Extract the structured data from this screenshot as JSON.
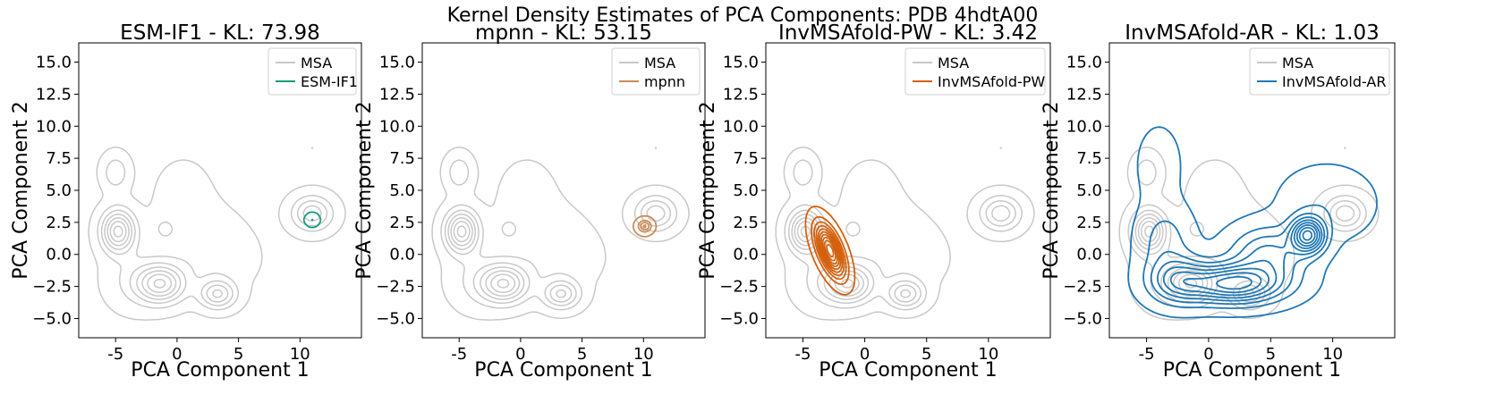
{
  "figure_title": "Kernel Density Estimates of PCA Components: PDB 4hdtA00",
  "colors": {
    "msa": "#c8c8c8",
    "esm_if1": "#10997a",
    "mpnn": "#cd8b57",
    "invmsafold_pw": "#d4600c",
    "invmsafold_ar": "#1f77b4"
  },
  "chart_data": [
    {
      "type": "kde_contour",
      "title": "ESM-IF1 - KL: 73.98",
      "xlabel": "PCA Component 1",
      "ylabel": "PCA Component 2",
      "xlim": [
        -8,
        15
      ],
      "ylim": [
        -6.5,
        16.5
      ],
      "xticks": [
        -5,
        0,
        5,
        10
      ],
      "yticks": [
        -5.0,
        -2.5,
        0.0,
        2.5,
        5.0,
        7.5,
        10.0,
        12.5,
        15.0
      ],
      "legend": [
        "MSA",
        "ESM-IF1"
      ],
      "legend_position": "upper right",
      "color_key": "esm_if1",
      "kde_components": [
        {
          "cx": 11.0,
          "cy": 2.7,
          "sx": 0.25,
          "sy": 0.22,
          "w": 1.0
        }
      ],
      "contour_levels": 2
    },
    {
      "type": "kde_contour",
      "title": "mpnn - KL: 53.15",
      "xlabel": "PCA Component 1",
      "ylabel": "PCA Component 2",
      "xlim": [
        -8,
        15
      ],
      "ylim": [
        -6.5,
        16.5
      ],
      "xticks": [
        -5,
        0,
        5,
        10
      ],
      "yticks": [
        -5.0,
        -2.5,
        0.0,
        2.5,
        5.0,
        7.5,
        10.0,
        12.5,
        15.0
      ],
      "legend": [
        "MSA",
        "mpnn"
      ],
      "legend_position": "upper right",
      "color_key": "mpnn",
      "kde_components": [
        {
          "cx": 10.1,
          "cy": 2.2,
          "sx": 0.35,
          "sy": 0.3,
          "w": 1.0
        }
      ],
      "contour_levels": 4
    },
    {
      "type": "kde_contour",
      "title": "InvMSAfold-PW - KL: 3.42",
      "xlabel": "PCA Component 1",
      "ylabel": "PCA Component 2",
      "xlim": [
        -8,
        15
      ],
      "ylim": [
        -6.5,
        16.5
      ],
      "xticks": [
        -5,
        0,
        5,
        10
      ],
      "yticks": [
        -5.0,
        -2.5,
        0.0,
        2.5,
        5.0,
        7.5,
        10.0,
        12.5,
        15.0
      ],
      "legend": [
        "MSA",
        "InvMSAfold-PW"
      ],
      "legend_position": "upper right",
      "color_key": "invmsafold_pw",
      "kde_components": [
        {
          "cx": -2.8,
          "cy": 0.3,
          "sx": 0.75,
          "sy": 1.3,
          "w": 1.0,
          "rho": -0.6
        }
      ],
      "contour_levels": 10
    },
    {
      "type": "kde_contour",
      "title": "InvMSAfold-AR - KL: 1.03",
      "xlabel": "PCA Component 1",
      "ylabel": "PCA Component 2",
      "xlim": [
        -8,
        15
      ],
      "ylim": [
        -6.5,
        16.5
      ],
      "xticks": [
        -5,
        0,
        5,
        10
      ],
      "yticks": [
        -5.0,
        -2.5,
        0.0,
        2.5,
        5.0,
        7.5,
        10.0,
        12.5,
        15.0
      ],
      "legend": [
        "MSA",
        "InvMSAfold-AR"
      ],
      "legend_position": "upper right",
      "color_key": "invmsafold_ar",
      "kde_components": [
        {
          "cx": 8.0,
          "cy": 1.5,
          "sx": 0.9,
          "sy": 0.9,
          "w": 1.0
        },
        {
          "cx": 2.0,
          "cy": -2.3,
          "sx": 2.6,
          "sy": 1.0,
          "w": 0.95
        },
        {
          "cx": -2.5,
          "cy": -2.0,
          "sx": 1.6,
          "sy": 1.2,
          "w": 0.5
        },
        {
          "cx": 4.8,
          "cy": 0.0,
          "sx": 2.0,
          "sy": 1.4,
          "w": 0.45
        },
        {
          "cx": -3.5,
          "cy": 1.0,
          "sx": 1.4,
          "sy": 1.8,
          "w": 0.22
        },
        {
          "cx": 9.5,
          "cy": 4.0,
          "sx": 2.4,
          "sy": 1.8,
          "w": 0.14
        },
        {
          "cx": -4.0,
          "cy": 7.0,
          "sx": 1.3,
          "sy": 2.2,
          "w": 0.08
        },
        {
          "cx": -4.0,
          "cy": 9.0,
          "sx": 0.3,
          "sy": 0.3,
          "w": 0.07
        }
      ],
      "contour_levels": 9
    }
  ],
  "msa_kde": {
    "components": [
      {
        "cx": -4.8,
        "cy": 1.8,
        "sx": 0.9,
        "sy": 1.1,
        "w": 1.0
      },
      {
        "cx": -1.3,
        "cy": -2.3,
        "sx": 1.3,
        "sy": 1.0,
        "w": 0.9
      },
      {
        "cx": 3.3,
        "cy": -3.1,
        "sx": 1.0,
        "sy": 0.75,
        "w": 0.65
      },
      {
        "cx": 11.0,
        "cy": 3.2,
        "sx": 1.1,
        "sy": 0.9,
        "w": 0.6
      },
      {
        "cx": -5.0,
        "cy": 6.4,
        "sx": 0.7,
        "sy": 0.9,
        "w": 0.32
      },
      {
        "cx": -1.0,
        "cy": 2.0,
        "sx": 0.4,
        "sy": 0.4,
        "w": 0.25
      },
      {
        "cx": 1.5,
        "cy": 1.0,
        "sx": 2.5,
        "sy": 2.0,
        "w": 0.12
      },
      {
        "cx": 0.5,
        "cy": 5.0,
        "sx": 1.6,
        "sy": 1.8,
        "w": 0.07
      },
      {
        "cx": -3.5,
        "cy": -2.0,
        "sx": 1.5,
        "sy": 1.5,
        "w": 0.2
      },
      {
        "cx": 3.5,
        "cy": -0.5,
        "sx": 2.0,
        "sy": 1.5,
        "w": 0.09
      }
    ],
    "contour_levels": 7,
    "outlier": {
      "x": 11.0,
      "y": 8.3
    }
  }
}
